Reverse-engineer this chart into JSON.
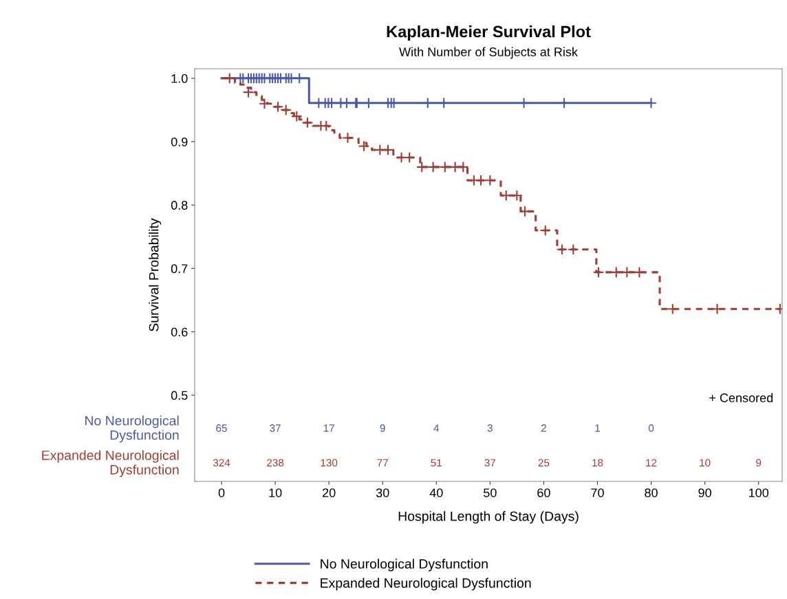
{
  "chart_data": {
    "type": "step",
    "title": "Kaplan-Meier Survival Plot",
    "subtitle": "With Number of Subjects at Risk",
    "xlabel": "Hospital Length of Stay (Days)",
    "ylabel": "Survival Probability",
    "xlim": [
      -5,
      104.4
    ],
    "xticks": [
      0,
      10,
      20,
      30,
      40,
      50,
      60,
      70,
      80,
      90,
      100
    ],
    "ylim": [
      0.364,
      1.015
    ],
    "yticks": [
      0.5,
      0.6,
      0.7,
      0.8,
      0.9,
      {
        "value": 1.0,
        "label": "1.0"
      }
    ],
    "grid": false,
    "legend": "bottom",
    "series": [
      {
        "name": "No Neurological Dysfunction",
        "color": "#4a5aa8",
        "line_style": "solid",
        "x": [
          0,
          16.3,
          80
        ],
        "values": [
          1.0,
          0.961,
          0.961
        ]
      },
      {
        "name": "Expanded Neurological Dysfunction",
        "color": "#a23b32",
        "line_style": "dashed",
        "x": [
          0,
          2.5,
          3.5,
          4.5,
          5.5,
          6.5,
          7.5,
          8.5,
          9.5,
          11,
          12.5,
          13.5,
          14.5,
          15.5,
          17,
          20,
          21,
          22,
          25.5,
          27,
          28,
          32,
          37,
          45.8,
          52,
          55.7,
          58.5,
          62.5,
          69.8,
          81.6,
          104
        ],
        "values": [
          1.0,
          0.993,
          0.99,
          0.985,
          0.978,
          0.972,
          0.966,
          0.96,
          0.955,
          0.95,
          0.945,
          0.94,
          0.935,
          0.93,
          0.925,
          0.918,
          0.912,
          0.906,
          0.898,
          0.893,
          0.887,
          0.875,
          0.86,
          0.839,
          0.815,
          0.79,
          0.76,
          0.73,
          0.694,
          0.636,
          0.636
        ]
      },
      {
        "type": "scatter",
        "marker": "cross",
        "color": "#4a5aa8",
        "x": [
          3.5,
          4,
          5,
          5.5,
          6,
          6.5,
          7,
          7.5,
          8,
          9,
          9.5,
          10,
          10.5,
          11,
          12,
          12.5,
          13,
          14.5,
          18.1,
          19.3,
          19.9,
          20.5,
          22.2,
          23.3,
          25,
          25.2,
          27.4,
          31,
          31.6,
          32.1,
          38.4,
          41.4,
          56.3,
          63.8,
          80
        ],
        "values": [
          1,
          1,
          1,
          1,
          1,
          1,
          1,
          1,
          1,
          1,
          1,
          1,
          1,
          1,
          1,
          1,
          1,
          1,
          0.961,
          0.961,
          0.961,
          0.961,
          0.961,
          0.961,
          0.961,
          0.961,
          0.961,
          0.961,
          0.961,
          0.961,
          0.961,
          0.961,
          0.961,
          0.961,
          0.961
        ]
      },
      {
        "type": "scatter",
        "marker": "cross",
        "color": "#a23b32",
        "x": [
          1.5,
          5,
          8,
          10.5,
          12,
          14,
          16,
          18.5,
          19.5,
          23.5,
          26.5,
          29.5,
          31,
          33.5,
          35,
          37.3,
          39.4,
          41.6,
          43.5,
          45,
          47,
          48.3,
          50,
          53,
          55,
          56.5,
          60.3,
          63.4,
          65.5,
          70.2,
          73.5,
          75.5,
          77.8,
          84,
          92.3,
          104
        ],
        "values": [
          1.0,
          0.978,
          0.96,
          0.955,
          0.95,
          0.94,
          0.93,
          0.925,
          0.925,
          0.906,
          0.893,
          0.887,
          0.887,
          0.875,
          0.875,
          0.86,
          0.86,
          0.86,
          0.86,
          0.86,
          0.839,
          0.839,
          0.839,
          0.815,
          0.815,
          0.79,
          0.76,
          0.73,
          0.73,
          0.694,
          0.694,
          0.694,
          0.694,
          0.636,
          0.636,
          0.636
        ]
      }
    ],
    "annotations": [
      "+ Censored",
      "No Neurological\nDysfunction",
      "65",
      "37",
      "17",
      "9",
      "4",
      "3",
      "2",
      "1",
      "0",
      "Expanded Neurological\nDysfunction",
      "324",
      "238",
      "130",
      "77",
      "51",
      "37",
      "25",
      "18",
      "12",
      "10",
      "9"
    ]
  }
}
